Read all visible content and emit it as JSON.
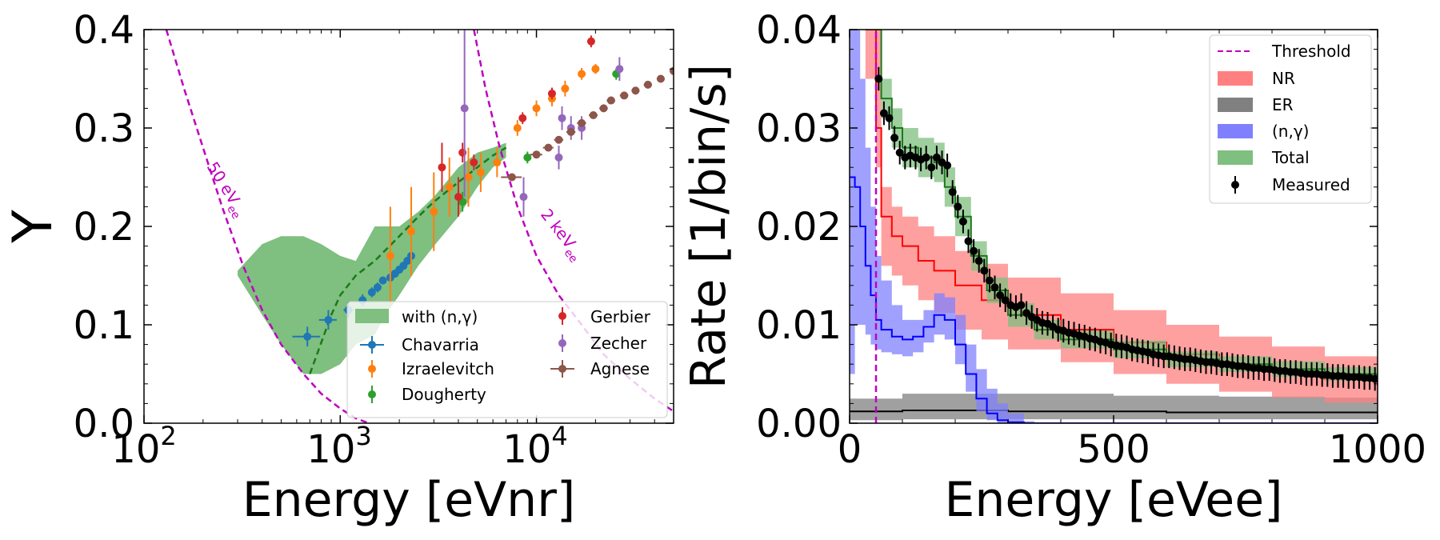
{
  "chart_data": [
    {
      "type": "scatter",
      "xscale": "log",
      "xlim": [
        100,
        50000
      ],
      "ylim": [
        0,
        0.4
      ],
      "xlabel": "Energy [eVnr]",
      "ylabel": "Y",
      "xticks": [
        100,
        1000,
        10000
      ],
      "xtick_labels": [
        "10",
        "10",
        "10"
      ],
      "xtick_exponents": [
        "2",
        "3",
        "4"
      ],
      "yticks": [
        0.0,
        0.1,
        0.2,
        0.3,
        0.4
      ],
      "ytick_labels": [
        "0.0",
        "0.1",
        "0.2",
        "0.3",
        "0.4"
      ],
      "legend_position": "bottom-right",
      "band": {
        "name": "with (n,γ)",
        "color": "#7fbf7f",
        "x": [
          300,
          400,
          500,
          650,
          800,
          1000,
          1200,
          1500,
          1700,
          2000,
          2500,
          3000,
          4000,
          5000,
          6000,
          7000
        ],
        "upper": [
          0.155,
          0.182,
          0.19,
          0.19,
          0.182,
          0.17,
          0.165,
          0.2,
          0.2,
          0.2,
          0.215,
          0.23,
          0.26,
          0.275,
          0.28,
          0.285
        ],
        "lower": [
          0.15,
          0.11,
          0.08,
          0.05,
          0.05,
          0.06,
          0.08,
          0.09,
          0.11,
          0.13,
          0.16,
          0.18,
          0.21,
          0.24,
          0.26,
          0.27
        ]
      },
      "fit_line": {
        "color": "#1a7a1a",
        "x": [
          700,
          900,
          1000,
          1200,
          1500,
          2000,
          2500,
          3000,
          4000,
          5000,
          6000,
          7000
        ],
        "y": [
          0.05,
          0.11,
          0.13,
          0.15,
          0.165,
          0.19,
          0.21,
          0.225,
          0.245,
          0.26,
          0.272,
          0.28
        ]
      },
      "thresholds": [
        {
          "label": "50 eVee",
          "label_main": "50 eV",
          "label_sub": "ee",
          "color": "#bf00bf",
          "x": [
            130,
            160,
            200,
            250,
            320,
            400,
            500,
            650,
            800,
            1000,
            1200,
            1400
          ],
          "y": [
            0.4,
            0.34,
            0.28,
            0.22,
            0.16,
            0.115,
            0.08,
            0.05,
            0.03,
            0.015,
            0.005,
            0.0
          ]
        },
        {
          "label": "2 keVee",
          "label_main": "2 keV",
          "label_sub": "ee",
          "color": "#bf00bf",
          "x": [
            4800,
            5500,
            6500,
            8000,
            10000,
            13000,
            17000,
            22000,
            30000,
            40000,
            50000
          ],
          "y": [
            0.4,
            0.34,
            0.28,
            0.22,
            0.17,
            0.13,
            0.1,
            0.07,
            0.045,
            0.025,
            0.012
          ]
        }
      ],
      "series": [
        {
          "name": "Chavarria",
          "color": "#1f77b4",
          "x": [
            680,
            870,
            1100,
            1300,
            1450,
            1550,
            1650,
            1800,
            1900,
            2000,
            2100,
            2200,
            2300
          ],
          "y": [
            0.088,
            0.105,
            0.115,
            0.125,
            0.133,
            0.138,
            0.145,
            0.148,
            0.152,
            0.156,
            0.16,
            0.165,
            0.17
          ],
          "yerr": [
            0.01,
            0.01,
            0.008,
            0.006,
            0.005,
            0.005,
            0.004,
            0.004,
            0.004,
            0.004,
            0.004,
            0.004,
            0.004
          ],
          "xerr": [
            110,
            90,
            60,
            40,
            30,
            25,
            20,
            20,
            20,
            20,
            20,
            20,
            20
          ]
        },
        {
          "name": "Izraelevitch",
          "color": "#ff7f0e",
          "x": [
            1800,
            2300,
            3000,
            3600,
            4500,
            5200,
            6300,
            8000,
            10000,
            12000,
            14000,
            17000,
            20000
          ],
          "y": [
            0.17,
            0.195,
            0.215,
            0.24,
            0.25,
            0.255,
            0.265,
            0.3,
            0.32,
            0.33,
            0.34,
            0.355,
            0.36
          ],
          "yerr": [
            0.05,
            0.045,
            0.04,
            0.03,
            0.03,
            0.02,
            0.015,
            0.008,
            0.008,
            0.008,
            0.008,
            0.006,
            0.005
          ]
        },
        {
          "name": "Dougherty",
          "color": "#2ca02c",
          "x": [
            4200,
            9000,
            25500
          ],
          "y": [
            0.225,
            0.27,
            0.355
          ],
          "yerr": [
            0.01,
            0.006,
            0.006
          ]
        },
        {
          "name": "Gerbier",
          "color": "#d62728",
          "x": [
            3300,
            4000,
            4200,
            4800,
            8500,
            12000,
            19000
          ],
          "y": [
            0.26,
            0.23,
            0.275,
            0.265,
            0.31,
            0.335,
            0.388
          ],
          "yerr": [
            0.025,
            0.02,
            0.01,
            0.008,
            0.006,
            0.006,
            0.006
          ]
        },
        {
          "name": "Zecher",
          "color": "#9467bd",
          "x": [
            4300,
            8600,
            13000,
            13500,
            15000,
            17000,
            26500
          ],
          "y": [
            0.32,
            0.23,
            0.27,
            0.31,
            0.3,
            0.3,
            0.36
          ],
          "yerr": [
            0.09,
            0.02,
            0.012,
            0.012,
            0.012,
            0.012,
            0.012
          ]
        },
        {
          "name": "Agnese",
          "color": "#8c564b",
          "x": [
            7500,
            10000,
            11500,
            13000,
            15000,
            17000,
            19500,
            22000,
            24000,
            28000,
            32000,
            37000,
            43000,
            50000
          ],
          "y": [
            0.25,
            0.273,
            0.28,
            0.288,
            0.296,
            0.305,
            0.313,
            0.32,
            0.328,
            0.333,
            0.338,
            0.344,
            0.35,
            0.358
          ],
          "yerr": [
            0.003,
            0.003,
            0.003,
            0.003,
            0.003,
            0.003,
            0.003,
            0.003,
            0.003,
            0.003,
            0.003,
            0.003,
            0.003,
            0.003
          ],
          "xerr": [
            900,
            700,
            700,
            700,
            800,
            900,
            1000,
            1100,
            1200,
            1400,
            1500,
            1800,
            2000,
            2300
          ]
        }
      ]
    },
    {
      "type": "line",
      "xlim": [
        0,
        1000
      ],
      "ylim": [
        0,
        0.04
      ],
      "xlabel": "Energy [eVee]",
      "ylabel": "Rate [1/bin/s]",
      "xticks": [
        0,
        500,
        1000
      ],
      "xtick_labels": [
        "0",
        "500",
        "1000"
      ],
      "yticks": [
        0.0,
        0.01,
        0.02,
        0.03,
        0.04
      ],
      "ytick_labels": [
        "0.00",
        "0.01",
        "0.02",
        "0.03",
        "0.04"
      ],
      "legend_position": "top-right",
      "threshold": {
        "name": "Threshold",
        "x": 50,
        "color": "#bf00bf"
      },
      "bands": [
        {
          "name": "NR",
          "fill": "#ff8080",
          "line": "#ff0000",
          "x": [
            30,
            50,
            60,
            80,
            100,
            130,
            160,
            200,
            250,
            300,
            400,
            500,
            600,
            700,
            800,
            900,
            1000
          ],
          "center": [
            0.04,
            0.03,
            0.021,
            0.019,
            0.018,
            0.0165,
            0.0155,
            0.014,
            0.0125,
            0.011,
            0.0095,
            0.0082,
            0.007,
            0.006,
            0.0052,
            0.0045,
            0.0038
          ],
          "lower": [
            0.035,
            0.026,
            0.016,
            0.015,
            0.014,
            0.0125,
            0.0112,
            0.0095,
            0.0085,
            0.0075,
            0.0062,
            0.005,
            0.004,
            0.0032,
            0.0026,
            0.0021,
            0.0017
          ],
          "upper": [
            0.04,
            0.04,
            0.024,
            0.022,
            0.021,
            0.02,
            0.019,
            0.0175,
            0.0162,
            0.0148,
            0.0132,
            0.0115,
            0.01,
            0.0088,
            0.0078,
            0.0068,
            0.006
          ]
        },
        {
          "name": "ER",
          "fill": "#808080",
          "line": "#000000",
          "x": [
            0,
            100,
            200,
            300,
            400,
            500,
            600,
            700,
            800,
            900,
            1000
          ],
          "center": [
            0.0012,
            0.0013,
            0.0013,
            0.0012,
            0.0012,
            0.0012,
            0.0011,
            0.0011,
            0.0011,
            0.0011,
            0.001
          ],
          "lower": [
            0.0003,
            0.0004,
            0.0004,
            0.0004,
            0.0004,
            0.0004,
            0.0004,
            0.0004,
            0.0004,
            0.0004,
            0.0004
          ],
          "upper": [
            0.0025,
            0.003,
            0.003,
            0.003,
            0.003,
            0.0028,
            0.0028,
            0.0027,
            0.0027,
            0.0026,
            0.0025
          ]
        },
        {
          "name": "(n,γ)",
          "fill": "#8080ff",
          "line": "#0000ff",
          "x": [
            0,
            10,
            20,
            30,
            40,
            50,
            60,
            80,
            100,
            120,
            140,
            160,
            180,
            200,
            220,
            240,
            260,
            280,
            300,
            330,
            350,
            1000
          ],
          "center": [
            0.025,
            0.024,
            0.02,
            0.016,
            0.013,
            0.0105,
            0.0095,
            0.0088,
            0.0085,
            0.0088,
            0.0098,
            0.011,
            0.0105,
            0.008,
            0.005,
            0.0025,
            0.001,
            0.0003,
            0.0001,
            0.0,
            0.0,
            0.0
          ],
          "lower": [
            0.005,
            0.01,
            0.01,
            0.009,
            0.008,
            0.0075,
            0.0072,
            0.007,
            0.0068,
            0.0072,
            0.0082,
            0.009,
            0.0085,
            0.006,
            0.0032,
            0.0012,
            0.0003,
            0.0,
            0.0,
            0.0,
            0.0,
            0.0
          ],
          "upper": [
            0.04,
            0.04,
            0.035,
            0.028,
            0.022,
            0.017,
            0.0145,
            0.012,
            0.0105,
            0.0105,
            0.0115,
            0.0132,
            0.0128,
            0.011,
            0.008,
            0.0055,
            0.0035,
            0.002,
            0.001,
            0.0002,
            0.0,
            0.0
          ]
        },
        {
          "name": "Total",
          "fill": "#7fbf7f",
          "line": "#1a7a1a",
          "x": [
            50,
            60,
            80,
            100,
            130,
            160,
            180,
            200,
            230,
            260,
            300,
            350,
            400,
            500,
            600,
            700,
            800,
            900,
            1000
          ],
          "center": [
            0.04,
            0.033,
            0.03,
            0.028,
            0.027,
            0.0265,
            0.024,
            0.021,
            0.017,
            0.0135,
            0.011,
            0.0095,
            0.0085,
            0.0075,
            0.0065,
            0.006,
            0.0055,
            0.005,
            0.0048
          ],
          "lower": [
            0.04,
            0.031,
            0.028,
            0.026,
            0.025,
            0.0245,
            0.022,
            0.019,
            0.0155,
            0.0122,
            0.0098,
            0.0085,
            0.0076,
            0.0066,
            0.0057,
            0.0052,
            0.0047,
            0.0043,
            0.0041
          ],
          "upper": [
            0.04,
            0.035,
            0.032,
            0.03,
            0.029,
            0.0285,
            0.026,
            0.023,
            0.0185,
            0.0148,
            0.0122,
            0.0105,
            0.0094,
            0.0084,
            0.0073,
            0.0068,
            0.0063,
            0.0057,
            0.0055
          ]
        }
      ],
      "measured": {
        "name": "Measured",
        "color": "#000000",
        "x": [
          55,
          65,
          75,
          85,
          95,
          105,
          115,
          125,
          135,
          145,
          155,
          165,
          175,
          185,
          195,
          205,
          215,
          225,
          235,
          245,
          255,
          265,
          275,
          285,
          295,
          305,
          315,
          325,
          335,
          345,
          355,
          365,
          375,
          385,
          395,
          405,
          415,
          425,
          435,
          445,
          455,
          465,
          475,
          485,
          495,
          505,
          515,
          525,
          535,
          545,
          555,
          565,
          575,
          585,
          595,
          605,
          615,
          625,
          635,
          645,
          655,
          665,
          675,
          685,
          695,
          705,
          715,
          725,
          735,
          745,
          755,
          765,
          775,
          785,
          795,
          805,
          815,
          825,
          835,
          845,
          855,
          865,
          875,
          885,
          895,
          905,
          915,
          925,
          935,
          945,
          955,
          965,
          975,
          985,
          995
        ],
        "y": [
          0.035,
          0.0315,
          0.031,
          0.029,
          0.0275,
          0.027,
          0.0272,
          0.027,
          0.0268,
          0.027,
          0.026,
          0.027,
          0.0265,
          0.0262,
          0.0235,
          0.022,
          0.0205,
          0.0185,
          0.0175,
          0.0165,
          0.0155,
          0.0145,
          0.0138,
          0.013,
          0.0125,
          0.012,
          0.0118,
          0.012,
          0.0112,
          0.0108,
          0.0105,
          0.0102,
          0.0101,
          0.0098,
          0.0095,
          0.0094,
          0.0092,
          0.0091,
          0.0089,
          0.0088,
          0.0086,
          0.0085,
          0.0083,
          0.0082,
          0.008,
          0.0079,
          0.0078,
          0.0077,
          0.0075,
          0.0074,
          0.0073,
          0.0072,
          0.007,
          0.0069,
          0.0068,
          0.0068,
          0.0067,
          0.0066,
          0.0065,
          0.0065,
          0.0064,
          0.0063,
          0.0062,
          0.0062,
          0.0061,
          0.006,
          0.006,
          0.0059,
          0.0058,
          0.0058,
          0.0057,
          0.0056,
          0.0056,
          0.0055,
          0.0055,
          0.0054,
          0.0053,
          0.0053,
          0.0052,
          0.0052,
          0.0051,
          0.005,
          0.005,
          0.005,
          0.0049,
          0.0049,
          0.0048,
          0.0048,
          0.0048,
          0.0047,
          0.0047,
          0.0047,
          0.0046,
          0.0046,
          0.0045
        ],
        "yerr": 0.0012
      }
    }
  ]
}
